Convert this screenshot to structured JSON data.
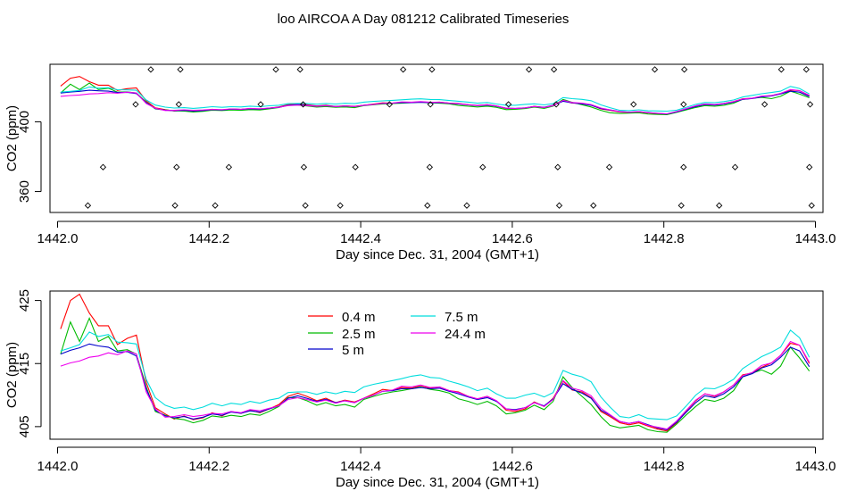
{
  "title": "loo AIRCOA A  Day 081212  Calibrated Timeseries",
  "chart_data": [
    {
      "type": "line",
      "xlabel": "Day since Dec. 31, 2004 (GMT+1)",
      "ylabel": "CO2 (ppm)",
      "xlim": [
        1441.99,
        1443.01
      ],
      "ylim": [
        348,
        433
      ],
      "xticks": [
        "1442.0",
        "1442.2",
        "1442.4",
        "1442.6",
        "1442.8",
        "1443.0"
      ],
      "yticks": [
        "360",
        "400"
      ],
      "x": [
        1442.004,
        1442.017,
        1442.029,
        1442.042,
        1442.054,
        1442.067,
        1442.079,
        1442.092,
        1442.104,
        1442.117,
        1442.129,
        1442.142,
        1442.154,
        1442.167,
        1442.179,
        1442.192,
        1442.204,
        1442.217,
        1442.229,
        1442.242,
        1442.254,
        1442.267,
        1442.279,
        1442.292,
        1442.304,
        1442.317,
        1442.329,
        1442.342,
        1442.354,
        1442.367,
        1442.379,
        1442.392,
        1442.404,
        1442.417,
        1442.429,
        1442.442,
        1442.454,
        1442.467,
        1442.479,
        1442.492,
        1442.504,
        1442.517,
        1442.529,
        1442.542,
        1442.554,
        1442.567,
        1442.579,
        1442.592,
        1442.604,
        1442.617,
        1442.629,
        1442.642,
        1442.654,
        1442.667,
        1442.679,
        1442.692,
        1442.704,
        1442.717,
        1442.729,
        1442.742,
        1442.754,
        1442.767,
        1442.779,
        1442.792,
        1442.804,
        1442.817,
        1442.829,
        1442.842,
        1442.854,
        1442.867,
        1442.879,
        1442.892,
        1442.904,
        1442.917,
        1442.929,
        1442.942,
        1442.954,
        1442.967,
        1442.979,
        1442.992
      ],
      "series": [
        {
          "name": "0.4 m",
          "color": "#ff0000",
          "values": [
            420.5,
            425,
            426,
            423,
            421,
            421,
            418,
            419,
            419.5,
            412,
            408,
            407,
            406.2,
            406.7,
            406.1,
            406.4,
            407.2,
            406.7,
            407.4,
            407.1,
            407.6,
            407.2,
            407.8,
            408.5,
            409.8,
            410.3,
            409.8,
            409.1,
            409.5,
            408.8,
            409.2,
            408.9,
            409.5,
            410.2,
            410.9,
            410.7,
            411.2,
            411.1,
            411.5,
            411.1,
            411.3,
            410.7,
            410.5,
            409.8,
            409.4,
            409.8,
            409.1,
            407.6,
            407.4,
            407.8,
            408.9,
            408.2,
            409.5,
            412.2,
            410.8,
            410.5,
            409.6,
            407.4,
            406.6,
            405.6,
            405.3,
            405.6,
            405.1,
            404.6,
            404.3,
            405.6,
            407.4,
            409.1,
            410.2,
            409.8,
            410.5,
            411.6,
            413.2,
            413.5,
            414.4,
            415.1,
            416.3,
            418.2,
            417.9,
            415
          ]
        },
        {
          "name": "2.5 m",
          "color": "#00bb00",
          "values": [
            416.5,
            421.6,
            418.5,
            422.2,
            418.5,
            419.3,
            417,
            417.2,
            416.5,
            411.3,
            407.4,
            406.8,
            406.3,
            406.1,
            405.6,
            406,
            406.7,
            406.5,
            406.8,
            406.6,
            407,
            406.8,
            407.4,
            408.2,
            409.6,
            409.6,
            409.1,
            408.4,
            408.8,
            408.3,
            408.5,
            408.1,
            409.3,
            409.8,
            410.2,
            410.5,
            410.7,
            411,
            411.3,
            410.9,
            410.7,
            410.3,
            409.4,
            409,
            408.5,
            409,
            408.3,
            407,
            407.2,
            407.6,
            408.4,
            407.7,
            409,
            412.9,
            411.2,
            409.8,
            408.5,
            406.6,
            405.2,
            404.8,
            405,
            405.2,
            404.5,
            404.2,
            404.1,
            405.4,
            406.8,
            408.2,
            409.3,
            409,
            409.5,
            410.7,
            412.9,
            413.5,
            414,
            413.3,
            414.6,
            417.6,
            415.9,
            413.8
          ]
        },
        {
          "name": "5 m",
          "color": "#0000cc",
          "values": [
            416.5,
            417.1,
            417.5,
            418.1,
            417.8,
            417.6,
            416.8,
            416.9,
            416.2,
            411,
            407.6,
            406.7,
            406.4,
            406.6,
            406.2,
            406.5,
            407,
            406.8,
            407.3,
            407.1,
            407.5,
            407.3,
            407.8,
            408.3,
            409.5,
            409.9,
            409.5,
            409,
            409.3,
            408.8,
            409.1,
            408.8,
            409.5,
            410,
            410.6,
            410.7,
            411,
            411,
            411.2,
            411,
            411.1,
            410.6,
            410.2,
            409.7,
            409.3,
            409.6,
            409,
            407.8,
            407.7,
            408,
            408.8,
            408.3,
            409.4,
            411.8,
            410.9,
            410.3,
            409.5,
            407.6,
            406.8,
            405.8,
            405.5,
            405.8,
            405.3,
            404.8,
            404.5,
            405.7,
            407.2,
            408.8,
            409.9,
            409.6,
            410.2,
            411.3,
            412.9,
            413.4,
            414.3,
            414.8,
            416,
            417.6,
            417,
            414.5
          ]
        },
        {
          "name": "7.5 m",
          "color": "#00dddd",
          "values": [
            417,
            417.5,
            418,
            420,
            419.3,
            419.6,
            418.4,
            418.3,
            418.1,
            412.5,
            409.6,
            408.4,
            407.9,
            408.1,
            407.7,
            408.1,
            408.7,
            408.3,
            408.7,
            408.5,
            409,
            408.7,
            409.2,
            409.5,
            410.4,
            410.5,
            410.5,
            410.1,
            410.5,
            410.2,
            410.6,
            410.4,
            411.3,
            411.7,
            412,
            412.3,
            412.6,
            413,
            413.2,
            412.8,
            412.7,
            412.2,
            411.8,
            411.3,
            410.7,
            411.1,
            410.2,
            409.5,
            409.5,
            410,
            410.3,
            409.7,
            410.4,
            413.9,
            413.3,
            412.9,
            412.1,
            409.7,
            408.1,
            406.6,
            406.4,
            406.9,
            406.3,
            406.2,
            406.1,
            406.7,
            408.2,
            410,
            411.1,
            411,
            411.6,
            412.5,
            414.2,
            415.2,
            416.1,
            416.8,
            417.6,
            420.3,
            419.1,
            416
          ]
        },
        {
          "name": "24.4 m",
          "color": "#ee00ee",
          "values": [
            414.6,
            415.1,
            415.4,
            416,
            416.2,
            416.7,
            416.4,
            417,
            416.5,
            410.5,
            407.8,
            406.5,
            406.6,
            406.9,
            406.6,
            406.8,
            407.1,
            407,
            407.4,
            407.2,
            407.7,
            407.5,
            407.9,
            408.3,
            409.3,
            409.6,
            409.3,
            408.9,
            409.2,
            408.7,
            409.1,
            408.8,
            409.5,
            410,
            410.6,
            410.8,
            411.4,
            411.3,
            411.6,
            411.2,
            411.3,
            410.7,
            410.4,
            409.8,
            409.4,
            409.8,
            409.1,
            407.8,
            407.6,
            408,
            408.8,
            408.2,
            409.3,
            412.3,
            411.1,
            410.7,
            409.9,
            407.9,
            406.9,
            405.8,
            405.5,
            405.8,
            405.2,
            404.9,
            404.6,
            405.9,
            407.5,
            409.2,
            410.2,
            409.9,
            410.5,
            411.6,
            413.1,
            413.6,
            414.7,
            415.1,
            416.3,
            418.5,
            417.9,
            415.2
          ]
        }
      ],
      "markers": {
        "style": "open diamonds",
        "points": [
          [
            1442.123,
            430
          ],
          [
            1442.162,
            430
          ],
          [
            1442.288,
            430
          ],
          [
            1442.32,
            430
          ],
          [
            1442.456,
            430
          ],
          [
            1442.494,
            430
          ],
          [
            1442.622,
            430
          ],
          [
            1442.655,
            430
          ],
          [
            1442.788,
            430
          ],
          [
            1442.827,
            430
          ],
          [
            1442.955,
            430
          ],
          [
            1442.988,
            430
          ],
          [
            1442.103,
            410
          ],
          [
            1442.16,
            410
          ],
          [
            1442.268,
            410
          ],
          [
            1442.324,
            410
          ],
          [
            1442.438,
            410
          ],
          [
            1442.492,
            410
          ],
          [
            1442.595,
            410
          ],
          [
            1442.658,
            410
          ],
          [
            1442.76,
            410
          ],
          [
            1442.826,
            410
          ],
          [
            1442.933,
            410
          ],
          [
            1442.993,
            410
          ],
          [
            1442.06,
            374
          ],
          [
            1442.157,
            374
          ],
          [
            1442.226,
            374
          ],
          [
            1442.325,
            374
          ],
          [
            1442.393,
            374
          ],
          [
            1442.491,
            374
          ],
          [
            1442.561,
            374
          ],
          [
            1442.66,
            374
          ],
          [
            1442.728,
            374
          ],
          [
            1442.826,
            374
          ],
          [
            1442.894,
            374
          ],
          [
            1442.992,
            374
          ],
          [
            1442.04,
            352
          ],
          [
            1442.155,
            352
          ],
          [
            1442.208,
            352
          ],
          [
            1442.327,
            352
          ],
          [
            1442.373,
            352
          ],
          [
            1442.488,
            352
          ],
          [
            1442.54,
            352
          ],
          [
            1442.662,
            352
          ],
          [
            1442.707,
            352
          ],
          [
            1442.823,
            352
          ],
          [
            1442.873,
            352
          ],
          [
            1442.995,
            352
          ]
        ]
      }
    },
    {
      "type": "line",
      "xlabel": "Day since Dec. 31, 2004 (GMT+1)",
      "ylabel": "CO2 (ppm)",
      "xlim": [
        1441.99,
        1443.01
      ],
      "ylim": [
        403,
        426.5
      ],
      "xticks": [
        "1442.0",
        "1442.2",
        "1442.4",
        "1442.6",
        "1442.8",
        "1443.0"
      ],
      "yticks": [
        "405",
        "415",
        "425"
      ],
      "legend": {
        "placement": "top-center",
        "entries": [
          "0.4 m",
          "2.5 m",
          "5 m",
          "7.5 m",
          "24.4 m"
        ]
      }
    }
  ]
}
